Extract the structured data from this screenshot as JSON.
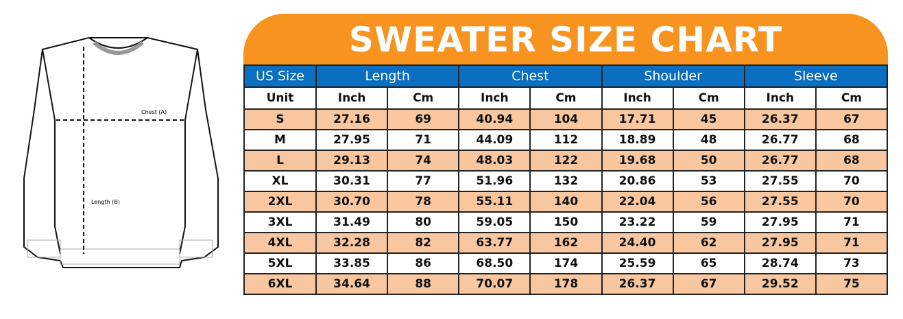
{
  "illustration": {
    "chest_label": "Chest (A)",
    "length_label": "Length (B)"
  },
  "title": "SWEATER SIZE CHART",
  "table": {
    "groups": [
      "US Size",
      "Length",
      "Chest",
      "Shoulder",
      "Sleeve"
    ],
    "units": [
      "Unit",
      "Inch",
      "Cm",
      "Inch",
      "Cm",
      "Inch",
      "Cm",
      "Inch",
      "Cm"
    ],
    "rows": [
      [
        "S",
        "27.16",
        "69",
        "40.94",
        "104",
        "17.71",
        "45",
        "26.37",
        "67"
      ],
      [
        "M",
        "27.95",
        "71",
        "44.09",
        "112",
        "18.89",
        "48",
        "26.77",
        "68"
      ],
      [
        "L",
        "29.13",
        "74",
        "48.03",
        "122",
        "19.68",
        "50",
        "26.77",
        "68"
      ],
      [
        "XL",
        "30.31",
        "77",
        "51.96",
        "132",
        "20.86",
        "53",
        "27.55",
        "70"
      ],
      [
        "2XL",
        "30.70",
        "78",
        "55.11",
        "140",
        "22.04",
        "56",
        "27.55",
        "70"
      ],
      [
        "3XL",
        "31.49",
        "80",
        "59.05",
        "150",
        "23.22",
        "59",
        "27.95",
        "71"
      ],
      [
        "4XL",
        "32.28",
        "82",
        "63.77",
        "162",
        "24.40",
        "62",
        "27.95",
        "71"
      ],
      [
        "5XL",
        "33.85",
        "86",
        "68.50",
        "174",
        "25.59",
        "65",
        "28.74",
        "73"
      ],
      [
        "6XL",
        "34.64",
        "88",
        "70.07",
        "178",
        "26.37",
        "67",
        "29.52",
        "75"
      ]
    ]
  },
  "colors": {
    "title_bg": "#F7931E",
    "header_bg": "#0A6FC0",
    "stripe": "#F8C7A0"
  }
}
